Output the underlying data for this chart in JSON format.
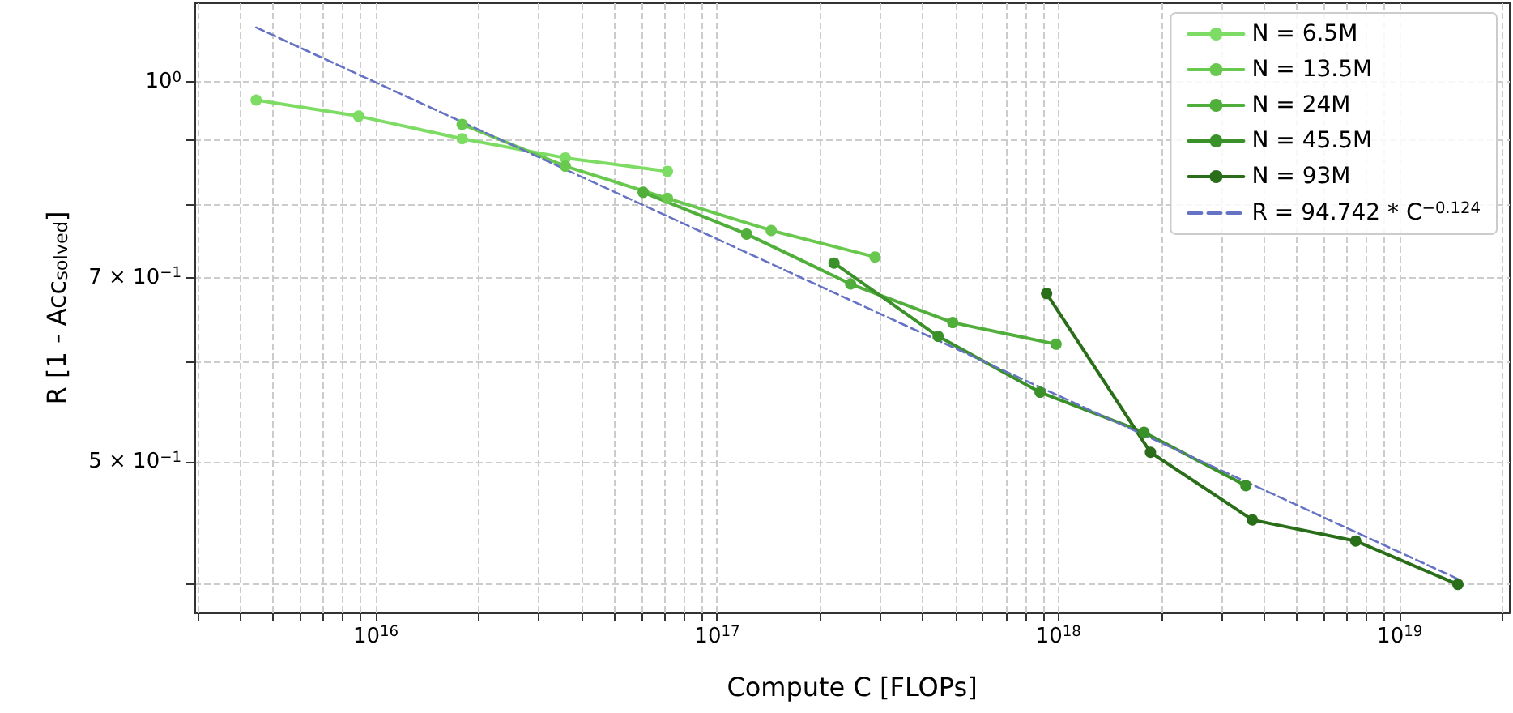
{
  "chart_data": {
    "type": "line",
    "xlabel": "Compute C [FLOPs]",
    "ylabel": "R [1 - Acc$_{solved}$]",
    "log": "xy",
    "grid": true,
    "legend": "top right",
    "marker": "circle",
    "xlim": [
      2940000000000000.0,
      2.1e+19
    ],
    "ylim": [
      0.38,
      1.155
    ],
    "xticks": [
      {
        "value": 3000000000000000.0,
        "label": null
      },
      {
        "value": 4000000000000000.0,
        "label": null
      },
      {
        "value": 5000000000000000.0,
        "label": null
      },
      {
        "value": 6000000000000000.0,
        "label": null
      },
      {
        "value": 7000000000000000.0,
        "label": null
      },
      {
        "value": 8000000000000000.0,
        "label": null
      },
      {
        "value": 9000000000000000.0,
        "label": null
      },
      {
        "value": 1e+16,
        "label": "10$^{16}$"
      },
      {
        "value": 2e+16,
        "label": null
      },
      {
        "value": 3e+16,
        "label": null
      },
      {
        "value": 4e+16,
        "label": null
      },
      {
        "value": 5e+16,
        "label": null
      },
      {
        "value": 6e+16,
        "label": null
      },
      {
        "value": 7e+16,
        "label": null
      },
      {
        "value": 8e+16,
        "label": null
      },
      {
        "value": 9e+16,
        "label": null
      },
      {
        "value": 1e+17,
        "label": "10$^{17}$"
      },
      {
        "value": 2e+17,
        "label": null
      },
      {
        "value": 3e+17,
        "label": null
      },
      {
        "value": 4e+17,
        "label": null
      },
      {
        "value": 5e+17,
        "label": null
      },
      {
        "value": 6e+17,
        "label": null
      },
      {
        "value": 7e+17,
        "label": null
      },
      {
        "value": 8e+17,
        "label": null
      },
      {
        "value": 9e+17,
        "label": null
      },
      {
        "value": 1e+18,
        "label": "10$^{18}$"
      },
      {
        "value": 2e+18,
        "label": null
      },
      {
        "value": 3e+18,
        "label": null
      },
      {
        "value": 4e+18,
        "label": null
      },
      {
        "value": 5e+18,
        "label": null
      },
      {
        "value": 6e+18,
        "label": null
      },
      {
        "value": 7e+18,
        "label": null
      },
      {
        "value": 8e+18,
        "label": null
      },
      {
        "value": 9e+18,
        "label": null
      },
      {
        "value": 1e+19,
        "label": "10$^{19}$"
      },
      {
        "value": 2e+19,
        "label": null
      }
    ],
    "yticks": [
      {
        "value": 0.4,
        "label": null
      },
      {
        "value": 0.5,
        "label": "5 × 10$^{−1}$"
      },
      {
        "value": 0.6,
        "label": null
      },
      {
        "value": 0.7,
        "label": "7 × 10$^{−1}$"
      },
      {
        "value": 0.8,
        "label": null
      },
      {
        "value": 0.9,
        "label": null
      },
      {
        "value": 1,
        "label": "10$^{0}$"
      }
    ],
    "series": [
      {
        "name": "N = 6.5M",
        "color": "#7ddc63",
        "x": [
          4460000000000000.0,
          8900000000000000.0,
          1.79e+16,
          3.59e+16,
          7.15e+16
        ],
        "values": [
          0.968,
          0.94,
          0.902,
          0.871,
          0.85
        ]
      },
      {
        "name": "N = 13.5M",
        "color": "#69c94f",
        "x": [
          1.79e+16,
          3.59e+16,
          7.15e+16,
          1.44e+17,
          2.9e+17
        ],
        "values": [
          0.926,
          0.858,
          0.809,
          0.763,
          0.727
        ]
      },
      {
        "name": "N = 24M",
        "color": "#50ae3b",
        "x": [
          6.07e+16,
          1.22e+17,
          2.46e+17,
          4.9e+17,
          9.84e+17
        ],
        "values": [
          0.818,
          0.758,
          0.692,
          0.645,
          0.62
        ]
      },
      {
        "name": "N = 45.5M",
        "color": "#3b9129",
        "x": [
          2.2e+17,
          4.44e+17,
          8.83e+17,
          1.78e+18,
          3.54e+18
        ],
        "values": [
          0.719,
          0.629,
          0.568,
          0.528,
          0.479
        ]
      },
      {
        "name": "N = 93M",
        "color": "#2a6e1a",
        "x": [
          9.23e+17,
          1.86e+18,
          3.7e+18,
          7.43e+18,
          1.48e+19
        ],
        "values": [
          0.68,
          0.509,
          0.45,
          0.433,
          0.4
        ]
      },
      {
        "name": "R = 94.742 * C$^{−0.124}$",
        "color": "#6673c4",
        "marker": "none",
        "line_style": "dashed",
        "x": [
          4460000000000000.0,
          1.48e+19
        ],
        "values": [
          1.105,
          0.404
        ]
      }
    ]
  }
}
